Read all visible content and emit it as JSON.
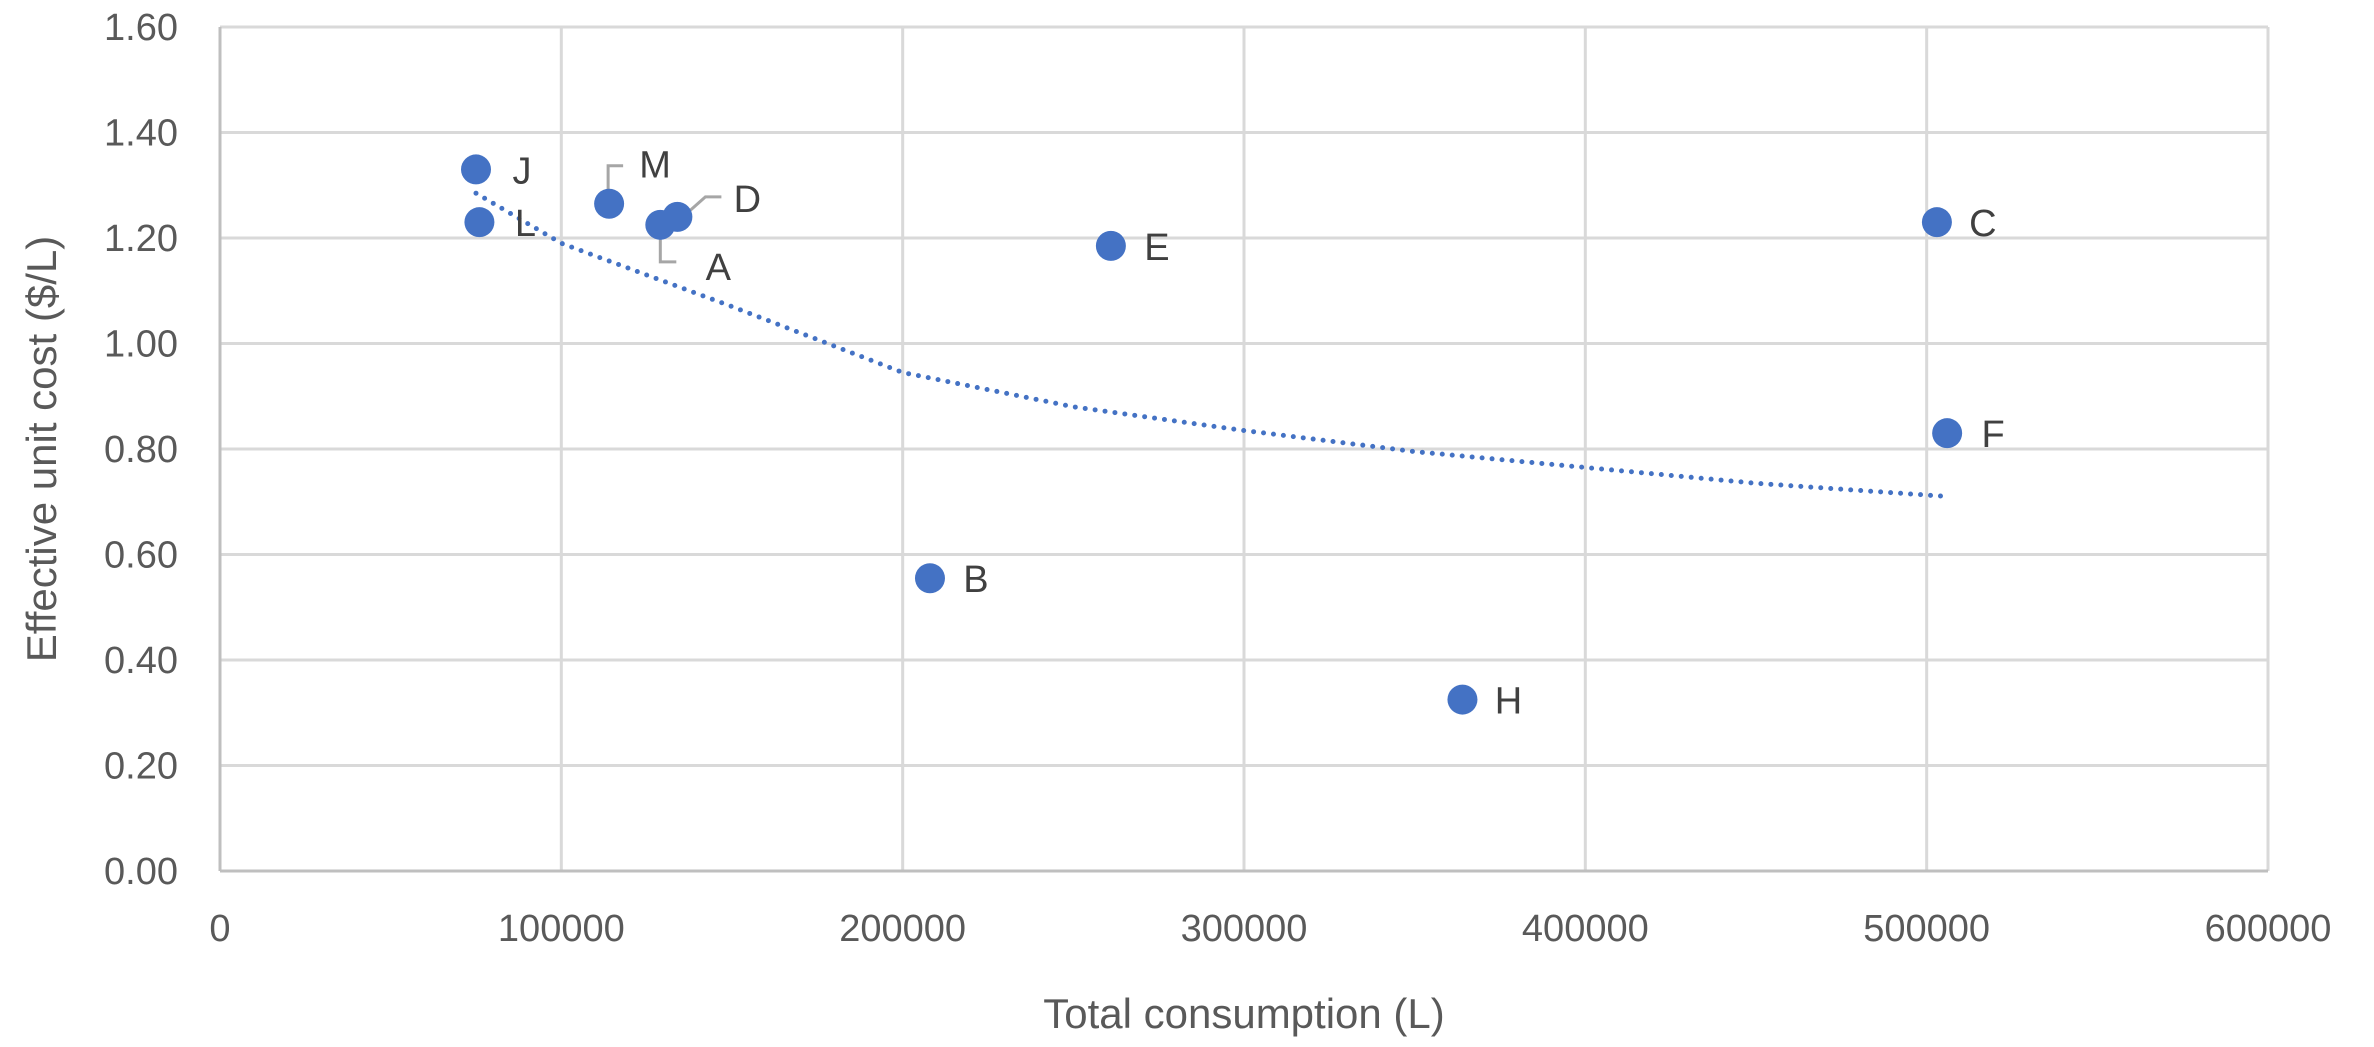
{
  "chart_data": {
    "type": "scatter",
    "title": "",
    "xlabel": "Total consumption (L)",
    "ylabel": "Effective unit cost ($/L)",
    "xlim": [
      0,
      600000
    ],
    "ylim": [
      0,
      1.6
    ],
    "x_ticks": [
      "0",
      "100000",
      "200000",
      "300000",
      "400000",
      "500000",
      "600000"
    ],
    "y_ticks": [
      "0.00",
      "0.20",
      "0.40",
      "0.60",
      "0.80",
      "1.00",
      "1.20",
      "1.40",
      "1.60"
    ],
    "grid": true,
    "legend": "none",
    "marker_color": "#4472c4",
    "points": [
      {
        "label": "J",
        "x": 75000,
        "y": 1.33
      },
      {
        "label": "L",
        "x": 76000,
        "y": 1.23
      },
      {
        "label": "M",
        "x": 114000,
        "y": 1.265
      },
      {
        "label": "A",
        "x": 129000,
        "y": 1.225
      },
      {
        "label": "D",
        "x": 134000,
        "y": 1.24
      },
      {
        "label": "E",
        "x": 261000,
        "y": 1.185
      },
      {
        "label": "B",
        "x": 208000,
        "y": 0.555
      },
      {
        "label": "H",
        "x": 364000,
        "y": 0.325
      },
      {
        "label": "C",
        "x": 503000,
        "y": 1.23
      },
      {
        "label": "F",
        "x": 506000,
        "y": 0.83
      }
    ],
    "trendline": {
      "type": "power",
      "style": "dotted",
      "color": "#4472c4",
      "x_range": [
        75000,
        506000
      ],
      "points": [
        {
          "x": 75000,
          "y": 1.285
        },
        {
          "x": 100000,
          "y": 1.19
        },
        {
          "x": 150000,
          "y": 1.07
        },
        {
          "x": 200000,
          "y": 0.945
        },
        {
          "x": 250000,
          "y": 0.88
        },
        {
          "x": 300000,
          "y": 0.835
        },
        {
          "x": 350000,
          "y": 0.795
        },
        {
          "x": 400000,
          "y": 0.765
        },
        {
          "x": 450000,
          "y": 0.735
        },
        {
          "x": 506000,
          "y": 0.71
        }
      ]
    }
  }
}
